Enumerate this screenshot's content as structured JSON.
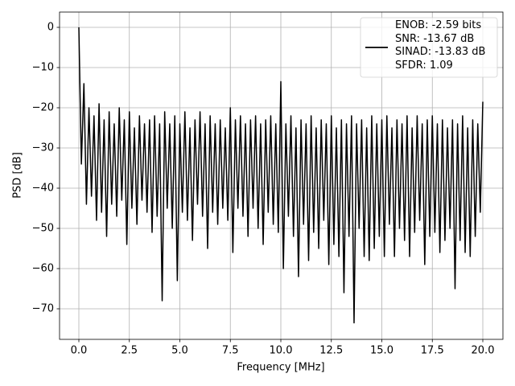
{
  "chart_data": {
    "type": "line",
    "xlabel": "Frequency [MHz]",
    "ylabel": "PSD [dB]",
    "xlim": [
      -0.956,
      20.996
    ],
    "ylim": [
      -77.6,
      3.8
    ],
    "xticks": [
      {
        "value": 0,
        "label": "0.0"
      },
      2.5,
      {
        "value": 5,
        "label": "5.0"
      },
      7.5,
      {
        "value": 10,
        "label": "10.0"
      },
      12.5,
      {
        "value": 15,
        "label": "15.0"
      },
      17.5,
      {
        "value": 20,
        "label": "20.0"
      }
    ],
    "yticks": [
      {
        "value": 0,
        "label": "0"
      },
      {
        "value": -10,
        "label": "−10"
      },
      {
        "value": -20,
        "label": "−20"
      },
      {
        "value": -30,
        "label": "−30"
      },
      {
        "value": -40,
        "label": "−40"
      },
      {
        "value": -50,
        "label": "−50"
      },
      {
        "value": -60,
        "label": "−60"
      },
      {
        "value": -70,
        "label": "−70"
      }
    ],
    "grid": true,
    "legend_loc": "upper right",
    "x": [
      0,
      0.125,
      0.25,
      0.375,
      0.5,
      0.625,
      0.75,
      0.875,
      1,
      1.125,
      1.25,
      1.375,
      1.5,
      1.625,
      1.75,
      1.875,
      2,
      2.125,
      2.25,
      2.375,
      2.5,
      2.625,
      2.75,
      2.875,
      3,
      3.125,
      3.25,
      3.375,
      3.5,
      3.625,
      3.75,
      3.875,
      4,
      4.125,
      4.25,
      4.375,
      4.5,
      4.625,
      4.75,
      4.875,
      5,
      5.125,
      5.25,
      5.375,
      5.5,
      5.625,
      5.75,
      5.875,
      6,
      6.125,
      6.25,
      6.375,
      6.5,
      6.625,
      6.75,
      6.875,
      7,
      7.125,
      7.25,
      7.375,
      7.5,
      7.625,
      7.75,
      7.875,
      8,
      8.125,
      8.25,
      8.375,
      8.5,
      8.625,
      8.75,
      8.875,
      9,
      9.125,
      9.25,
      9.375,
      9.5,
      9.625,
      9.75,
      9.875,
      10,
      10.125,
      10.25,
      10.375,
      10.5,
      10.625,
      10.75,
      10.875,
      11,
      11.125,
      11.25,
      11.375,
      11.5,
      11.625,
      11.75,
      11.875,
      12,
      12.125,
      12.25,
      12.375,
      12.5,
      12.625,
      12.75,
      12.875,
      13,
      13.125,
      13.25,
      13.375,
      13.5,
      13.625,
      13.75,
      13.875,
      14,
      14.125,
      14.25,
      14.375,
      14.5,
      14.625,
      14.75,
      14.875,
      15,
      15.125,
      15.25,
      15.375,
      15.5,
      15.625,
      15.75,
      15.875,
      16,
      16.125,
      16.25,
      16.375,
      16.5,
      16.625,
      16.75,
      16.875,
      17,
      17.125,
      17.25,
      17.375,
      17.5,
      17.625,
      17.75,
      17.875,
      18,
      18.125,
      18.25,
      18.375,
      18.5,
      18.625,
      18.75,
      18.875,
      19,
      19.125,
      19.25,
      19.375,
      19.5,
      19.625,
      19.75,
      19.875,
      20
    ],
    "series": [
      {
        "name": "ENOB: -2.59 bits\nSNR: -13.67 dB\nSINAD: -13.83 dB\nSFDR: 1.09",
        "color": "#000000",
        "values": [
          0,
          -34,
          -14,
          -44,
          -20,
          -42,
          -22,
          -48,
          -19,
          -46,
          -23,
          -52,
          -21,
          -44,
          -24,
          -47,
          -20,
          -43,
          -23,
          -54,
          -21,
          -45,
          -25,
          -49,
          -22,
          -43,
          -24,
          -46,
          -23,
          -51,
          -22,
          -47,
          -24,
          -68,
          -21,
          -45,
          -24,
          -50,
          -22,
          -63,
          -24,
          -46,
          -21,
          -48,
          -25,
          -53,
          -23,
          -44,
          -21,
          -47,
          -24,
          -55,
          -22,
          -46,
          -24,
          -49,
          -23,
          -45,
          -25,
          -48,
          -20,
          -56,
          -23,
          -45,
          -22,
          -47,
          -24,
          -52,
          -23,
          -45,
          -22,
          -50,
          -24,
          -54,
          -23,
          -46,
          -22,
          -49,
          -24,
          -51,
          -13.5,
          -60,
          -24,
          -47,
          -22,
          -52,
          -25,
          -62,
          -23,
          -49,
          -24,
          -58,
          -22,
          -51,
          -25,
          -55,
          -23,
          -48,
          -24,
          -59,
          -22,
          -54,
          -25,
          -57,
          -23,
          -66,
          -24,
          -52,
          -22,
          -73.5,
          -24,
          -50,
          -23,
          -57,
          -25,
          -58,
          -22,
          -55,
          -24,
          -52,
          -23,
          -57,
          -22,
          -49,
          -25,
          -57,
          -23,
          -50,
          -24,
          -53,
          -22,
          -57,
          -25,
          -51,
          -22,
          -48,
          -24,
          -59,
          -23,
          -52,
          -22,
          -51,
          -24,
          -56,
          -23,
          -53,
          -25,
          -50,
          -23,
          -65,
          -24,
          -53,
          -22,
          -56,
          -25,
          -57,
          -23,
          -52,
          -24,
          -46,
          -18.5
        ]
      }
    ]
  }
}
